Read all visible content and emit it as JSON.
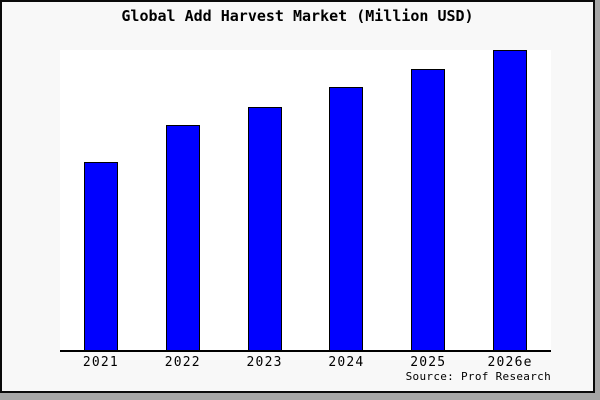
{
  "title": "Global Add Harvest Market (Million USD)",
  "source_credit": "Source: Prof Research",
  "colors": {
    "bar_fill": "#0000ff",
    "bar_border": "#000000",
    "card_background": "#f8f8f8",
    "plot_background": "#ffffff",
    "axis": "#000000",
    "frame_border": "#0a0a0a",
    "shadow": "#a6a6a6",
    "text": "#000000"
  },
  "chart_data": {
    "type": "bar",
    "title": "Global Add Harvest Market (Million USD)",
    "categories": [
      "2021",
      "2022",
      "2023",
      "2024",
      "2025",
      "2026e"
    ],
    "values": [
      62.5,
      75,
      81,
      87.5,
      93.5,
      100
    ],
    "values_note": "no numeric axis or data labels shown; values are bar heights as % of tallest (2026e) bar, which touches the plot top",
    "xlabel": "",
    "ylabel": "",
    "ylim": [
      0,
      100
    ],
    "grid": false,
    "legend": false,
    "y_axis_visible": false,
    "x_axis_visible": true,
    "annotation": "Source: Prof Research"
  }
}
